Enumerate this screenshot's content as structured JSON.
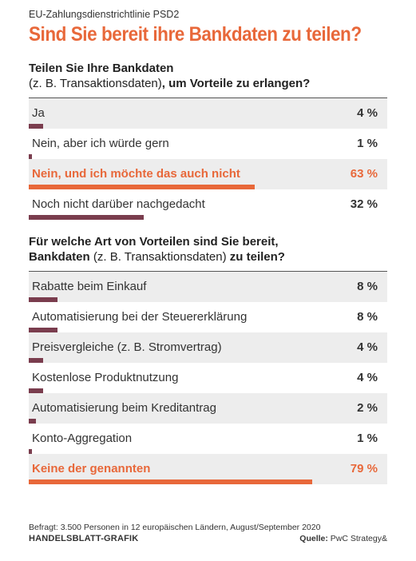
{
  "kicker": "EU-Zahlungsdienstrichtlinie PSD2",
  "title": "Sind Sie bereit ihre Bankdaten zu teilen?",
  "colors": {
    "accent": "#e8683a",
    "bar": "#7a3d4e",
    "shade": "#ededed"
  },
  "chart_data": [
    {
      "type": "bar",
      "question_bold_1": "Teilen Sie Ihre Bankdaten",
      "question_thin": "(z. B. Transaktionsdaten)",
      "question_bold_2": ", um Vorteile zu erlangen?",
      "categories": [
        "Ja",
        "Nein, aber ich würde gern",
        "Nein, und ich möchte das auch nicht",
        "Noch nicht darüber nachgedacht"
      ],
      "values": [
        4,
        1,
        63,
        32
      ],
      "value_labels": [
        "4 %",
        "1 %",
        "63 %",
        "32 %"
      ],
      "highlight_index": 2,
      "unit": "%"
    },
    {
      "type": "bar",
      "question_bold_1": "Für welche Art von Vorteilen sind Sie bereit,",
      "question_bold_2": "Bankdaten",
      "question_thin": "(z. B. Transaktionsdaten)",
      "question_bold_3": "zu teilen?",
      "categories": [
        "Rabatte beim Einkauf",
        "Automatisierung bei der Steuererklärung",
        "Preisvergleiche (z. B. Stromvertrag)",
        "Kostenlose Produktnutzung",
        "Automatisierung beim Kreditantrag",
        "Konto-Aggregation",
        "Keine der genannten"
      ],
      "values": [
        8,
        8,
        4,
        4,
        2,
        1,
        79
      ],
      "value_labels": [
        "8 %",
        "8 %",
        "4 %",
        "4 %",
        "2 %",
        "1 %",
        "79 %"
      ],
      "highlight_index": 6,
      "unit": "%"
    }
  ],
  "footer": {
    "note": "Befragt: 3.500 Personen in 12 europäischen Ländern, August/September 2020",
    "brand": "HANDELSBLATT-GRAFIK",
    "source_label": "Quelle:",
    "source_value": "PwC Strategy&"
  }
}
